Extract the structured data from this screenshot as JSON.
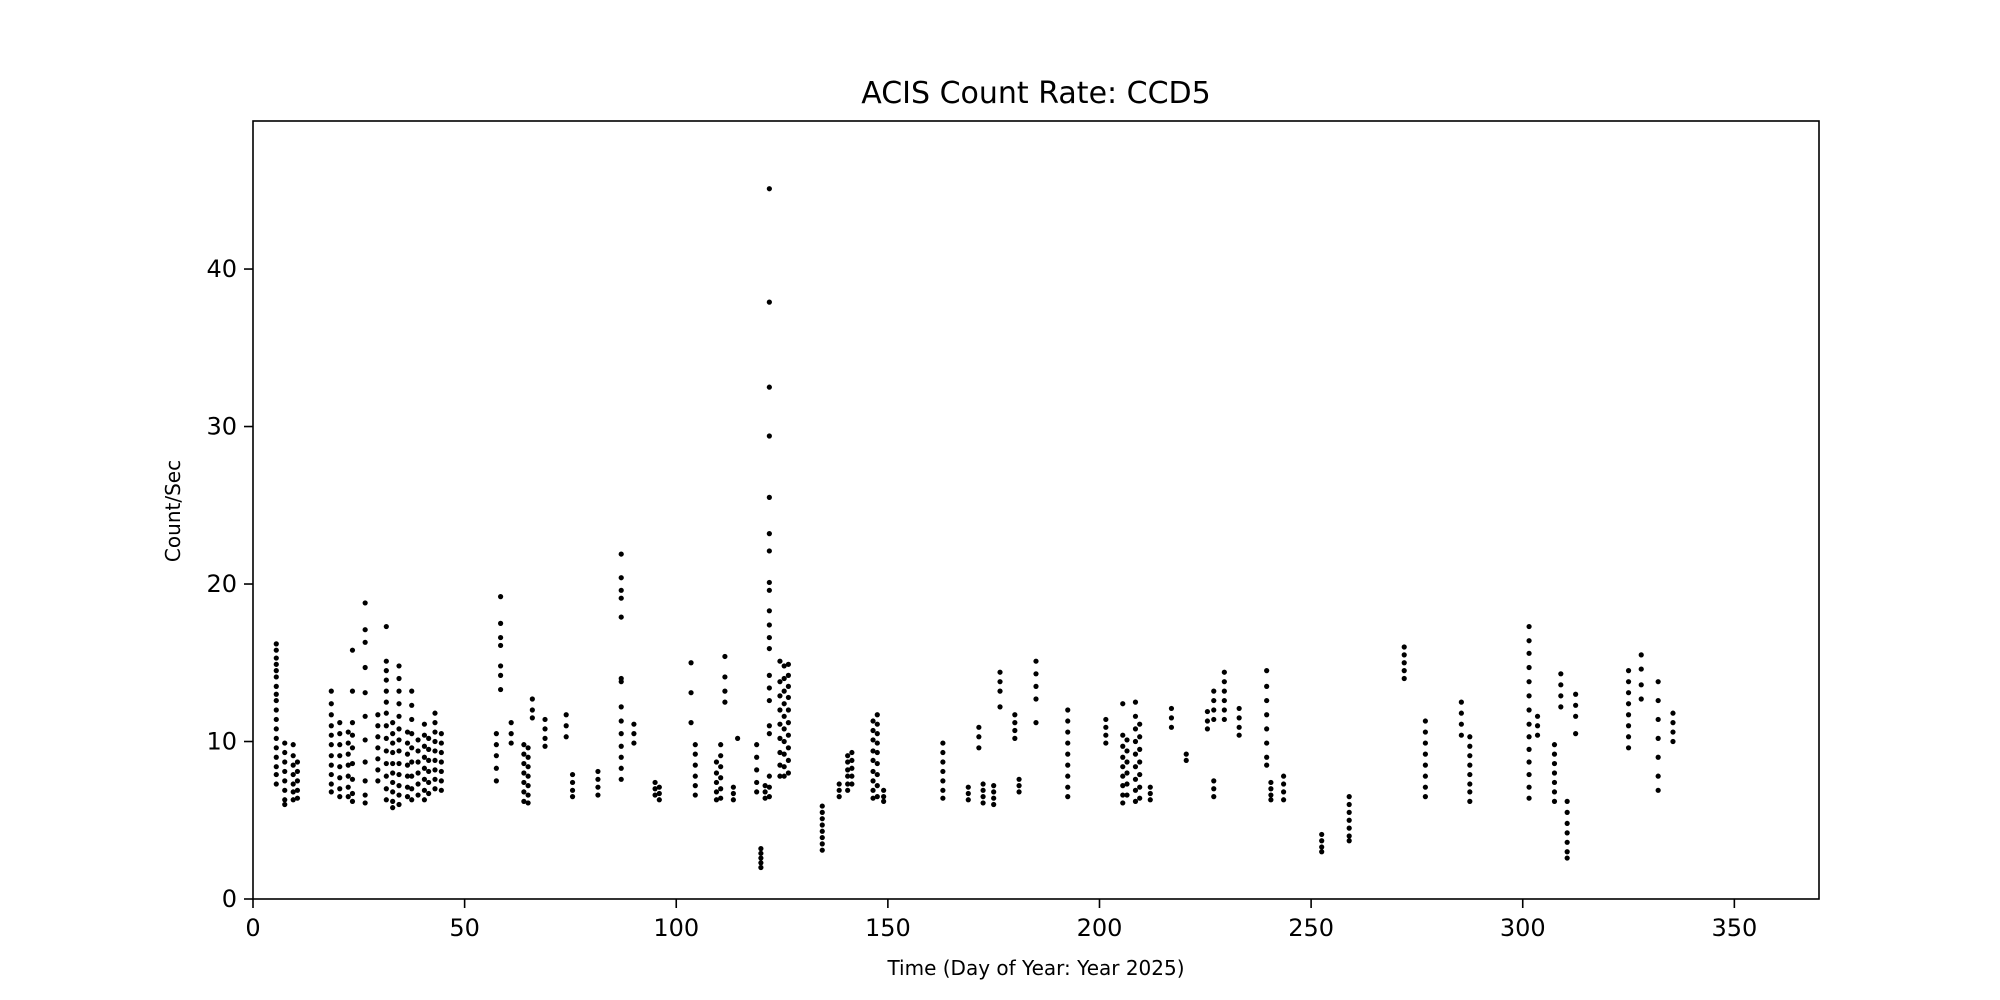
{
  "chart_data": {
    "type": "scatter",
    "title": "ACIS Count Rate: CCD5",
    "xlabel": "Time (Day of Year: Year 2025)",
    "ylabel": "Count/Sec",
    "xlim": [
      0,
      370
    ],
    "ylim": [
      0,
      49.4
    ],
    "xticks": [
      0,
      50,
      100,
      150,
      200,
      250,
      300,
      350
    ],
    "yticks": [
      0,
      10,
      20,
      30,
      40
    ],
    "grid": false,
    "legend": "none",
    "marker_color": "#000000",
    "clusters": [
      {
        "x": 5.5,
        "values": [
          16.2,
          15.8,
          15.3,
          14.9,
          14.5,
          14.1,
          13.5,
          13.0,
          12.6,
          12.0,
          11.4,
          10.8,
          10.2,
          9.6,
          9.0,
          8.4,
          7.9,
          7.3
        ]
      },
      {
        "x": 7.5,
        "values": [
          9.9,
          9.3,
          8.7,
          8.1,
          7.5,
          6.9,
          6.3,
          6.0
        ]
      },
      {
        "x": 9.5,
        "values": [
          9.8,
          9.1,
          8.5,
          7.9,
          7.3,
          6.8,
          6.3
        ]
      },
      {
        "x": 10.5,
        "values": [
          8.7,
          8.1,
          7.5,
          6.9,
          6.4
        ]
      },
      {
        "x": 18.5,
        "values": [
          13.2,
          12.4,
          11.7,
          11.0,
          10.4,
          9.8,
          9.1,
          8.5,
          7.9,
          7.3,
          6.8
        ]
      },
      {
        "x": 20.5,
        "values": [
          11.2,
          10.5,
          9.8,
          9.1,
          8.4,
          7.7,
          7.0,
          6.5
        ]
      },
      {
        "x": 22.5,
        "values": [
          10.6,
          9.9,
          9.2,
          8.5,
          7.8,
          7.1,
          6.5
        ]
      },
      {
        "x": 23.5,
        "values": [
          15.8,
          13.2,
          11.2,
          10.4,
          9.6,
          8.6,
          7.6,
          6.7,
          6.2
        ]
      },
      {
        "x": 26.5,
        "values": [
          18.8,
          17.1,
          16.3,
          14.7,
          13.1,
          11.6,
          10.1,
          8.7,
          7.5,
          6.6,
          6.1
        ]
      },
      {
        "x": 29.5,
        "values": [
          11.7,
          11.0,
          10.3,
          9.6,
          8.9,
          8.2,
          7.5
        ]
      },
      {
        "x": 31.5,
        "values": [
          17.3,
          15.1,
          14.5,
          13.9,
          13.2,
          12.5,
          11.8,
          11.0,
          10.2,
          9.4,
          8.6,
          7.8,
          7.0,
          6.3
        ]
      },
      {
        "x": 33.0,
        "values": [
          11.2,
          10.5,
          9.9,
          9.3,
          8.6,
          8.0,
          7.4,
          6.8,
          6.2,
          5.8
        ]
      },
      {
        "x": 34.5,
        "values": [
          14.8,
          14.0,
          13.2,
          12.4,
          11.6,
          10.8,
          10.1,
          9.4,
          8.6,
          7.9,
          7.2,
          6.6,
          6.0
        ]
      },
      {
        "x": 36.5,
        "values": [
          10.6,
          9.9,
          9.2,
          8.5,
          7.8,
          7.1,
          6.5
        ]
      },
      {
        "x": 37.5,
        "values": [
          13.2,
          12.3,
          11.4,
          10.5,
          9.6,
          8.7,
          7.8,
          7.0,
          6.3
        ]
      },
      {
        "x": 39.0,
        "values": [
          10.1,
          9.4,
          8.7,
          8.0,
          7.3,
          6.6
        ]
      },
      {
        "x": 40.5,
        "values": [
          11.1,
          10.4,
          9.7,
          9.0,
          8.3,
          7.6,
          6.9,
          6.3
        ]
      },
      {
        "x": 41.5,
        "values": [
          10.2,
          9.5,
          8.8,
          8.1,
          7.4,
          6.7
        ]
      },
      {
        "x": 43.0,
        "values": [
          11.8,
          11.2,
          10.6,
          10.0,
          9.4,
          8.8,
          8.2,
          7.6,
          7.0
        ]
      },
      {
        "x": 44.5,
        "values": [
          10.5,
          9.9,
          9.3,
          8.7,
          8.1,
          7.5,
          6.9
        ]
      },
      {
        "x": 57.5,
        "values": [
          10.5,
          9.8,
          9.1,
          8.3,
          7.5
        ]
      },
      {
        "x": 58.5,
        "values": [
          19.2,
          17.5,
          16.6,
          16.1,
          14.8,
          14.2,
          13.3
        ]
      },
      {
        "x": 61.0,
        "values": [
          11.2,
          10.5,
          9.9
        ]
      },
      {
        "x": 64.0,
        "values": [
          9.8,
          9.2,
          8.6,
          8.0,
          7.4,
          6.8,
          6.2
        ]
      },
      {
        "x": 65.0,
        "values": [
          9.6,
          9.0,
          8.4,
          7.8,
          7.2,
          6.6,
          6.1
        ]
      },
      {
        "x": 66.0,
        "values": [
          12.7,
          12.0,
          11.5
        ]
      },
      {
        "x": 69.0,
        "values": [
          11.4,
          10.8,
          10.2,
          9.7
        ]
      },
      {
        "x": 74.0,
        "values": [
          11.7,
          11.0,
          10.3
        ]
      },
      {
        "x": 75.5,
        "values": [
          7.9,
          7.4,
          6.9,
          6.5
        ]
      },
      {
        "x": 81.5,
        "values": [
          8.1,
          7.6,
          7.1,
          6.6
        ]
      },
      {
        "x": 87.0,
        "values": [
          21.9,
          20.4,
          19.6,
          19.1,
          17.9,
          14.0,
          13.8,
          12.2,
          11.3,
          10.5,
          9.7,
          9.0,
          8.3,
          7.6
        ]
      },
      {
        "x": 90.0,
        "values": [
          11.1,
          10.5,
          9.9
        ]
      },
      {
        "x": 95.0,
        "values": [
          7.4,
          7.0,
          6.6
        ]
      },
      {
        "x": 96.0,
        "values": [
          7.1,
          6.7,
          6.3
        ]
      },
      {
        "x": 103.5,
        "values": [
          15.0,
          13.1,
          11.2
        ]
      },
      {
        "x": 104.5,
        "values": [
          9.8,
          9.2,
          8.5,
          7.8,
          7.2,
          6.6
        ]
      },
      {
        "x": 109.5,
        "values": [
          8.7,
          8.0,
          7.4,
          6.8,
          6.3
        ]
      },
      {
        "x": 110.5,
        "values": [
          9.8,
          9.1,
          8.4,
          7.7,
          7.0,
          6.4
        ]
      },
      {
        "x": 111.5,
        "values": [
          15.4,
          14.1,
          13.2,
          12.5
        ]
      },
      {
        "x": 113.5,
        "values": [
          7.1,
          6.7,
          6.3
        ]
      },
      {
        "x": 114.5,
        "values": [
          10.2
        ]
      },
      {
        "x": 119.0,
        "values": [
          9.8,
          9.0,
          8.2,
          7.4,
          6.8
        ]
      },
      {
        "x": 120.0,
        "values": [
          3.2,
          2.9,
          2.6,
          2.3,
          2.0
        ]
      },
      {
        "x": 121.0,
        "values": [
          7.2,
          6.8,
          6.4
        ]
      },
      {
        "x": 122.0,
        "values": [
          45.1,
          37.9,
          32.5,
          29.4,
          25.5,
          23.2,
          22.1,
          20.1,
          19.6,
          18.3,
          17.4,
          16.6,
          15.9,
          14.2,
          13.4,
          12.6,
          11.0,
          10.5,
          7.8,
          7.1,
          6.5
        ]
      },
      {
        "x": 124.5,
        "values": [
          15.1,
          13.8,
          12.9,
          12.0,
          11.1,
          10.2,
          9.3,
          8.5,
          7.8
        ]
      },
      {
        "x": 125.5,
        "values": [
          14.8,
          14.0,
          13.2,
          12.4,
          11.6,
          10.8,
          10.0,
          9.2,
          8.4,
          7.8
        ]
      },
      {
        "x": 126.5,
        "values": [
          14.9,
          14.2,
          13.5,
          12.8,
          12.0,
          11.2,
          10.4,
          9.6,
          8.8,
          8.0
        ]
      },
      {
        "x": 134.5,
        "values": [
          5.9,
          5.5,
          5.1,
          4.7,
          4.3,
          3.9,
          3.5,
          3.1
        ]
      },
      {
        "x": 138.5,
        "values": [
          7.3,
          6.9,
          6.5
        ]
      },
      {
        "x": 140.5,
        "values": [
          9.1,
          8.7,
          8.2,
          7.8,
          7.3,
          6.9
        ]
      },
      {
        "x": 141.5,
        "values": [
          9.3,
          8.8,
          8.3,
          7.8,
          7.3
        ]
      },
      {
        "x": 146.5,
        "values": [
          11.3,
          10.7,
          10.1,
          9.4,
          8.8,
          8.1,
          7.5,
          6.9,
          6.4
        ]
      },
      {
        "x": 147.5,
        "values": [
          11.7,
          11.1,
          10.5,
          9.9,
          9.3,
          8.6,
          7.9,
          7.2,
          6.5
        ]
      },
      {
        "x": 149.0,
        "values": [
          6.9,
          6.5,
          6.2
        ]
      },
      {
        "x": 163.0,
        "values": [
          9.9,
          9.3,
          8.7,
          8.1,
          7.5,
          6.9,
          6.4
        ]
      },
      {
        "x": 169.0,
        "values": [
          7.1,
          6.7,
          6.3
        ]
      },
      {
        "x": 171.5,
        "values": [
          10.9,
          10.3,
          9.6
        ]
      },
      {
        "x": 172.5,
        "values": [
          7.3,
          6.9,
          6.5,
          6.1
        ]
      },
      {
        "x": 175.0,
        "values": [
          7.2,
          6.8,
          6.4,
          6.0
        ]
      },
      {
        "x": 176.5,
        "values": [
          14.4,
          13.8,
          13.2,
          12.2
        ]
      },
      {
        "x": 180.0,
        "values": [
          11.7,
          11.2,
          10.7,
          10.2
        ]
      },
      {
        "x": 181.0,
        "values": [
          7.6,
          7.2,
          6.8
        ]
      },
      {
        "x": 185.0,
        "values": [
          15.1,
          14.3,
          13.5,
          12.7,
          11.2
        ]
      },
      {
        "x": 192.5,
        "values": [
          12.0,
          11.3,
          10.6,
          9.9,
          9.2,
          8.5,
          7.8,
          7.1,
          6.5
        ]
      },
      {
        "x": 201.5,
        "values": [
          11.4,
          10.9,
          10.4,
          9.9
        ]
      },
      {
        "x": 205.5,
        "values": [
          12.4,
          10.4,
          9.7,
          9.0,
          8.4,
          7.8,
          7.2,
          6.6,
          6.1
        ]
      },
      {
        "x": 206.5,
        "values": [
          10.1,
          9.4,
          8.7,
          8.0,
          7.3,
          6.6
        ]
      },
      {
        "x": 208.5,
        "values": [
          12.5,
          11.6,
          10.8,
          10.0,
          9.2,
          8.4,
          7.6,
          6.9,
          6.2
        ]
      },
      {
        "x": 209.5,
        "values": [
          11.1,
          10.3,
          9.5,
          8.7,
          7.9,
          7.1,
          6.4
        ]
      },
      {
        "x": 212.0,
        "values": [
          7.1,
          6.7,
          6.3
        ]
      },
      {
        "x": 217.0,
        "values": [
          12.1,
          11.5,
          10.9
        ]
      },
      {
        "x": 220.5,
        "values": [
          9.2,
          8.8
        ]
      },
      {
        "x": 225.5,
        "values": [
          11.9,
          11.3,
          10.8
        ]
      },
      {
        "x": 227.0,
        "values": [
          13.2,
          12.6,
          12.0,
          11.4,
          7.5,
          7.0,
          6.5
        ]
      },
      {
        "x": 229.5,
        "values": [
          14.4,
          13.8,
          13.2,
          12.6,
          12.0,
          11.4
        ]
      },
      {
        "x": 233.0,
        "values": [
          12.1,
          11.5,
          10.9,
          10.4
        ]
      },
      {
        "x": 239.5,
        "values": [
          14.5,
          13.5,
          12.6,
          11.7,
          10.8,
          9.9,
          9.0,
          8.5
        ]
      },
      {
        "x": 240.5,
        "values": [
          7.4,
          7.0,
          6.6,
          6.3
        ]
      },
      {
        "x": 243.5,
        "values": [
          7.8,
          7.3,
          6.8,
          6.3
        ]
      },
      {
        "x": 252.5,
        "values": [
          4.1,
          3.7,
          3.3,
          3.0
        ]
      },
      {
        "x": 259.0,
        "values": [
          6.5,
          6.0,
          5.5,
          5.0,
          4.5,
          4.0,
          3.7
        ]
      },
      {
        "x": 272.0,
        "values": [
          16.0,
          15.5,
          15.0,
          14.5,
          14.0
        ]
      },
      {
        "x": 277.0,
        "values": [
          11.3,
          10.6,
          9.9,
          9.2,
          8.5,
          7.8,
          7.1,
          6.5
        ]
      },
      {
        "x": 285.5,
        "values": [
          12.5,
          11.8,
          11.1,
          10.4
        ]
      },
      {
        "x": 287.5,
        "values": [
          10.3,
          9.7,
          9.1,
          8.5,
          7.9,
          7.3,
          6.8,
          6.2
        ]
      },
      {
        "x": 301.5,
        "values": [
          17.3,
          16.4,
          15.6,
          14.7,
          13.8,
          12.9,
          12.0,
          11.1,
          10.3,
          9.5,
          8.7,
          7.9,
          7.1,
          6.4
        ]
      },
      {
        "x": 303.5,
        "values": [
          11.6,
          11.0,
          10.4
        ]
      },
      {
        "x": 307.5,
        "values": [
          9.8,
          9.2,
          8.6,
          8.0,
          7.4,
          6.8,
          6.2
        ]
      },
      {
        "x": 309.0,
        "values": [
          14.3,
          13.6,
          12.9,
          12.2
        ]
      },
      {
        "x": 310.5,
        "values": [
          6.2,
          5.5,
          4.8,
          4.2,
          3.6,
          3.0,
          2.6
        ]
      },
      {
        "x": 312.5,
        "values": [
          13.0,
          12.3,
          11.6,
          10.5
        ]
      },
      {
        "x": 325.0,
        "values": [
          14.5,
          13.8,
          13.1,
          12.4,
          11.7,
          11.0,
          10.3,
          9.6
        ]
      },
      {
        "x": 328.0,
        "values": [
          15.5,
          14.6,
          13.6,
          12.7
        ]
      },
      {
        "x": 332.0,
        "values": [
          13.8,
          12.6,
          11.4,
          10.2,
          9.0,
          7.8,
          6.9
        ]
      },
      {
        "x": 335.5,
        "values": [
          11.8,
          11.2,
          10.6,
          10.0
        ]
      }
    ]
  }
}
